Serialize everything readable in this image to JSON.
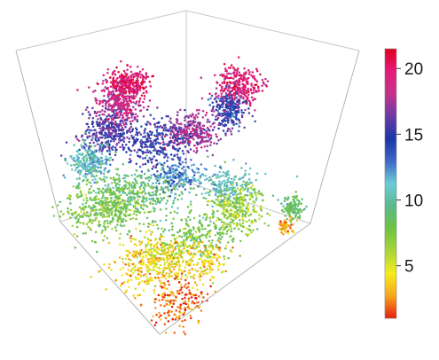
{
  "chart_data": {
    "type": "scatter",
    "title": "",
    "projection": "3d-cube",
    "axes_labels_shown": false,
    "grid": false,
    "colorbar": {
      "placement": "right",
      "range": [
        1,
        21.5
      ],
      "ticks": [
        {
          "value": 5,
          "label": "5"
        },
        {
          "value": 10,
          "label": "10"
        },
        {
          "value": 15,
          "label": "15"
        },
        {
          "value": 20,
          "label": "20"
        }
      ],
      "colors": [
        "#e81e0e",
        "#f7a51b",
        "#f6ec1b",
        "#a8d43a",
        "#6fc23e",
        "#59b98a",
        "#6ccbd8",
        "#3f67c8",
        "#1a36a6",
        "#6b3ba6",
        "#c7318c",
        "#e5197a",
        "#e0001f"
      ]
    },
    "series": [
      {
        "clusters": [
          {
            "value": 20.0,
            "count": 300,
            "spread": [
              2.0,
              1.8
            ]
          },
          {
            "value": 18.5,
            "count": 300,
            "spread": [
              2.2,
              2.0
            ]
          },
          {
            "value": 15.5,
            "count": 320,
            "spread": [
              2.4,
              2.2
            ]
          },
          {
            "value": 19.5,
            "count": 300,
            "spread": [
              2.2,
              1.8
            ]
          },
          {
            "value": 14.5,
            "count": 260,
            "spread": [
              2.0,
              2.0
            ]
          },
          {
            "value": 17.5,
            "count": 320,
            "spread": [
              2.4,
              1.8
            ]
          },
          {
            "value": 15.0,
            "count": 280,
            "spread": [
              2.4,
              2.2
            ]
          },
          {
            "value": 11.0,
            "count": 260,
            "spread": [
              2.2,
              2.0
            ]
          },
          {
            "value": 12.5,
            "count": 200,
            "spread": [
              2.0,
              1.8
            ]
          },
          {
            "value": 9.0,
            "count": 360,
            "spread": [
              2.6,
              2.2
            ]
          },
          {
            "value": 7.5,
            "count": 360,
            "spread": [
              2.8,
              2.4
            ]
          },
          {
            "value": 10.5,
            "count": 220,
            "spread": [
              2.4,
              2.0
            ]
          },
          {
            "value": 6.5,
            "count": 260,
            "spread": [
              2.4,
              2.2
            ]
          },
          {
            "value": 8.0,
            "count": 240,
            "spread": [
              2.4,
              2.0
            ]
          },
          {
            "value": 5.0,
            "count": 260,
            "spread": [
              2.6,
              2.4
            ]
          },
          {
            "value": 3.5,
            "count": 220,
            "spread": [
              2.4,
              2.4
            ]
          },
          {
            "value": 2.0,
            "count": 180,
            "spread": [
              2.2,
              2.6
            ]
          },
          {
            "value": 4.0,
            "count": 140,
            "spread": [
              2.4,
              2.2
            ]
          },
          {
            "value": 8.5,
            "count": 120,
            "spread": [
              2.0,
              2.0
            ]
          },
          {
            "value": 3.0,
            "count": 60,
            "spread": [
              1.6,
              1.6
            ]
          }
        ]
      }
    ]
  }
}
